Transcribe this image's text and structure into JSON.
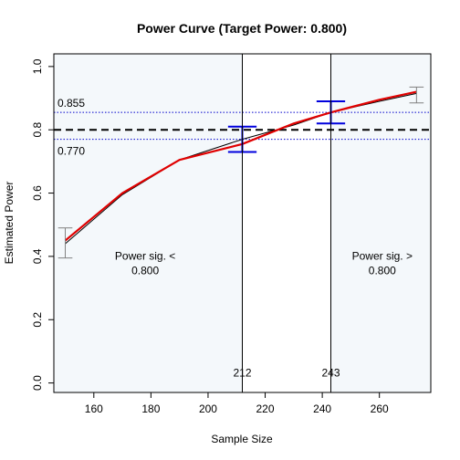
{
  "chart_data": {
    "type": "line",
    "title": "Power Curve (Target Power: 0.800)",
    "xlabel": "Sample Size",
    "ylabel": "Estimated Power",
    "xlim": [
      146,
      278
    ],
    "ylim": [
      -0.03,
      1.04
    ],
    "xticks": [
      160,
      180,
      200,
      220,
      240,
      260
    ],
    "yticks": [
      0.0,
      0.2,
      0.4,
      0.6,
      0.8,
      1.0
    ],
    "ytick_labels": [
      "0.0",
      "0.2",
      "0.4",
      "0.6",
      "0.8",
      "1.0"
    ],
    "target_power": 0.8,
    "ci_lower_line": 0.77,
    "ci_upper_line": 0.855,
    "ci_lower_label": "0.770",
    "ci_upper_label": "0.855",
    "series": [
      {
        "name": "black",
        "color": "#000000",
        "x": [
          150,
          170,
          190,
          212,
          230,
          243,
          260,
          273
        ],
        "y": [
          0.44,
          0.595,
          0.705,
          0.77,
          0.815,
          0.855,
          0.89,
          0.915
        ]
      },
      {
        "name": "red",
        "color": "#e00000",
        "x": [
          150,
          170,
          190,
          212,
          230,
          243,
          260,
          273
        ],
        "y": [
          0.45,
          0.6,
          0.705,
          0.755,
          0.82,
          0.855,
          0.895,
          0.92
        ]
      }
    ],
    "error_bars": [
      {
        "x": 150,
        "lower": 0.395,
        "upper": 0.49,
        "color": "#808080",
        "cap_halfwidth": 2.5
      },
      {
        "x": 212,
        "lower": 0.73,
        "upper": 0.81,
        "color": "#0000dd",
        "cap_halfwidth": 5
      },
      {
        "x": 243,
        "lower": 0.82,
        "upper": 0.89,
        "color": "#0000dd",
        "cap_halfwidth": 5
      },
      {
        "x": 273,
        "lower": 0.885,
        "upper": 0.935,
        "color": "#808080",
        "cap_halfwidth": 2.5
      }
    ],
    "vlines": [
      {
        "x": 212,
        "label": "212"
      },
      {
        "x": 243,
        "label": "243"
      }
    ],
    "shaded_regions": [
      {
        "x_from": 146,
        "x_to": 212,
        "color": "#f4f8fb"
      },
      {
        "x_from": 243,
        "x_to": 278,
        "color": "#f4f8fb"
      }
    ],
    "region_labels": [
      {
        "lines": [
          "Power sig. <",
          "0.800"
        ],
        "x": 178,
        "y": 0.39
      },
      {
        "lines": [
          "Power sig. >",
          "0.800"
        ],
        "x": 261,
        "y": 0.39
      }
    ],
    "grid": false,
    "legend": "none"
  }
}
